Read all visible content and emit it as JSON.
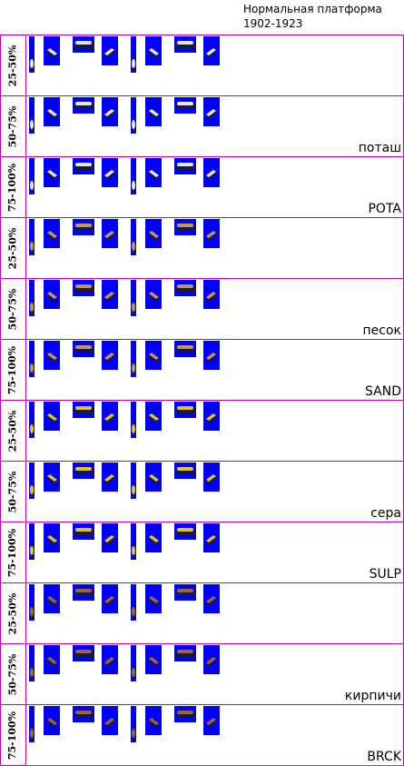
{
  "header": {
    "title": "Нормальная платформа",
    "years": "1902-1923"
  },
  "sheet": {
    "rows": [
      {
        "load": "25-50%",
        "cargo": "potash",
        "label": ""
      },
      {
        "load": "50-75%",
        "cargo": "potash",
        "label": "поташ"
      },
      {
        "load": "75-100%",
        "cargo": "potash",
        "label": "POTA"
      },
      {
        "load": "25-50%",
        "cargo": "sand",
        "label": ""
      },
      {
        "load": "50-75%",
        "cargo": "sand",
        "label": "песок"
      },
      {
        "load": "75-100%",
        "cargo": "sand",
        "label": "SAND"
      },
      {
        "load": "25-50%",
        "cargo": "sulphur",
        "label": ""
      },
      {
        "load": "50-75%",
        "cargo": "sulphur",
        "label": "сера"
      },
      {
        "load": "75-100%",
        "cargo": "sulphur",
        "label": "SULP"
      },
      {
        "load": "25-50%",
        "cargo": "bricks",
        "label": ""
      },
      {
        "load": "50-75%",
        "cargo": "bricks",
        "label": "кирпичи"
      },
      {
        "load": "75-100%",
        "cargo": "bricks",
        "label": "BRCK"
      }
    ],
    "cargo_colors": {
      "potash": "#e6e6ee",
      "sand": "#c8925a",
      "sulphur": "#e8c22a",
      "bricks": "#a0623a"
    },
    "tile_background": "#0000ff",
    "grid_color": "#c000c0"
  }
}
